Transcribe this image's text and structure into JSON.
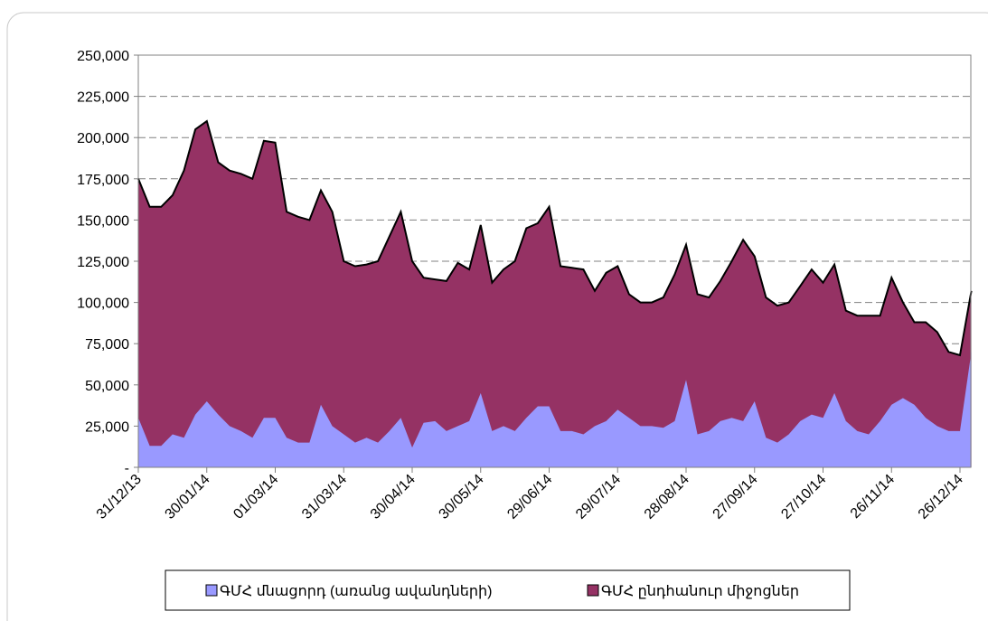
{
  "chart_data": {
    "type": "area",
    "categories": [
      "31/12/13",
      null,
      null,
      null,
      null,
      null,
      "30/01/14",
      null,
      null,
      null,
      null,
      null,
      "01/03/14",
      null,
      null,
      null,
      null,
      null,
      "31/03/14",
      null,
      null,
      null,
      null,
      null,
      "30/04/14",
      null,
      null,
      null,
      null,
      null,
      "30/05/14",
      null,
      null,
      null,
      null,
      null,
      "29/06/14",
      null,
      null,
      null,
      null,
      null,
      "29/07/14",
      null,
      null,
      null,
      null,
      null,
      "28/08/14",
      null,
      null,
      null,
      null,
      null,
      "27/09/14",
      null,
      null,
      null,
      null,
      null,
      "27/10/14",
      null,
      null,
      null,
      null,
      null,
      "26/11/14",
      null,
      null,
      null,
      null,
      null,
      "26/12/14",
      null
    ],
    "series": [
      {
        "name": "ԳՄՀ ընդհանուր միջոցներ",
        "color": "#953264",
        "values": [
          175000,
          158000,
          158000,
          165000,
          180000,
          205000,
          210000,
          185000,
          180000,
          178000,
          175000,
          198000,
          197000,
          155000,
          152000,
          150000,
          168000,
          155000,
          125000,
          122000,
          123000,
          125000,
          140000,
          155000,
          125000,
          115000,
          114000,
          113000,
          124000,
          120000,
          147000,
          112000,
          120000,
          125000,
          145000,
          148000,
          158000,
          122000,
          121000,
          120000,
          107000,
          118000,
          122000,
          105000,
          100000,
          100000,
          103000,
          117000,
          135000,
          105000,
          103000,
          113000,
          125000,
          138000,
          128000,
          103000,
          98000,
          100000,
          110000,
          120000,
          112000,
          123000,
          95000,
          92000,
          92000,
          92000,
          115000,
          100000,
          88000,
          88000,
          82000,
          70000,
          68000,
          107000
        ]
      },
      {
        "name": "ԳՄՀ մնացորդ (առանց ավանդների)",
        "color": "#9999ff",
        "values": [
          30000,
          13000,
          13000,
          20000,
          18000,
          32000,
          40000,
          32000,
          25000,
          22000,
          18000,
          30000,
          30000,
          18000,
          15000,
          15000,
          38000,
          25000,
          20000,
          15000,
          18000,
          15000,
          22000,
          30000,
          12000,
          27000,
          28000,
          22000,
          25000,
          28000,
          45000,
          22000,
          25000,
          22000,
          30000,
          37000,
          37000,
          22000,
          22000,
          20000,
          25000,
          28000,
          35000,
          30000,
          25000,
          25000,
          24000,
          28000,
          53000,
          20000,
          22000,
          28000,
          30000,
          28000,
          40000,
          18000,
          15000,
          20000,
          28000,
          32000,
          30000,
          45000,
          28000,
          22000,
          20000,
          28000,
          38000,
          42000,
          38000,
          30000,
          25000,
          22000,
          22000,
          70000
        ]
      }
    ],
    "ylim": [
      0,
      250000
    ],
    "yticks": [
      {
        "value": 0,
        "label": "-"
      },
      {
        "value": 25000,
        "label": "25,000"
      },
      {
        "value": 50000,
        "label": "50,000"
      },
      {
        "value": 75000,
        "label": "75,000"
      },
      {
        "value": 100000,
        "label": "100,000"
      },
      {
        "value": 125000,
        "label": "125,000"
      },
      {
        "value": 150000,
        "label": "150,000"
      },
      {
        "value": 175000,
        "label": "175,000"
      },
      {
        "value": 200000,
        "label": "200,000"
      },
      {
        "value": 225000,
        "label": "225,000"
      },
      {
        "value": 250000,
        "label": "250,000"
      }
    ],
    "grid": true
  }
}
